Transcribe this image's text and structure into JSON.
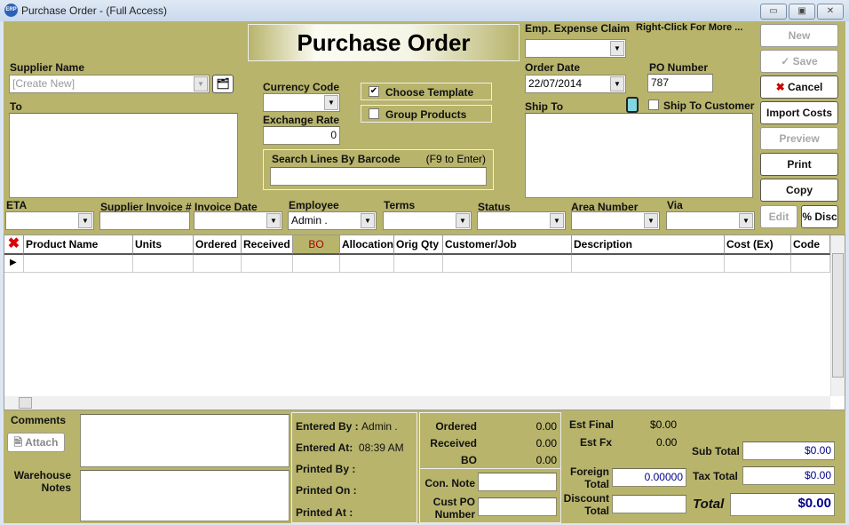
{
  "window": {
    "title": "Purchase Order - (Full Access)",
    "app_icon": "ERP"
  },
  "header": {
    "title": "Purchase Order",
    "emp_expense_claim": "Emp. Expense Claim",
    "right_click_hint": "Right-Click For More ..."
  },
  "supplier": {
    "label": "Supplier Name",
    "placeholder": "[Create New]"
  },
  "to": {
    "label": "To"
  },
  "currency": {
    "label": "Currency Code",
    "value": ""
  },
  "exchange": {
    "label": "Exchange Rate",
    "value": "0"
  },
  "options": {
    "choose_template": "Choose Template",
    "choose_template_checked": true,
    "group_products": "Group Products",
    "group_products_checked": false
  },
  "barcode": {
    "label": "Search Lines By Barcode",
    "hint": "(F9 to Enter)"
  },
  "order_date": {
    "label": "Order Date",
    "value": "22/07/2014"
  },
  "po_number": {
    "label": "PO Number",
    "value": "787"
  },
  "ship_to": {
    "label": "Ship To",
    "ship_to_customer": "Ship To Customer"
  },
  "buttons": {
    "new": "New",
    "save": "Save",
    "cancel": "Cancel",
    "import_costs": "Import Costs",
    "preview": "Preview",
    "print": "Print",
    "copy": "Copy",
    "edit": "Edit",
    "disc": "% Disc"
  },
  "fields_row": {
    "eta": "ETA",
    "supplier_invoice": "Supplier Invoice #",
    "invoice_date": "Invoice Date",
    "employee": "Employee",
    "employee_value": "Admin .",
    "terms": "Terms",
    "status": "Status",
    "area_number": "Area Number",
    "via": "Via"
  },
  "grid": {
    "columns": [
      "Product Name",
      "Units",
      "Ordered",
      "Received",
      "BO",
      "Allocation",
      "Orig Qty",
      "Customer/Job",
      "Description",
      "Cost (Ex)",
      "Code"
    ]
  },
  "bottom": {
    "comments": "Comments",
    "attach": "Attach",
    "warehouse_notes": "Warehouse Notes",
    "entered_by_label": "Entered By :",
    "entered_by": "Admin .",
    "entered_at_label": "Entered At:",
    "entered_at": "08:39 AM",
    "printed_by": "Printed By :",
    "printed_on": "Printed On :",
    "printed_at": "Printed At :",
    "ordered_label": "Ordered",
    "ordered": "0.00",
    "received_label": "Received",
    "received": "0.00",
    "bo_label": "BO",
    "bo": "0.00",
    "con_note": "Con. Note",
    "cust_po": "Cust PO Number",
    "est_final_label": "Est Final",
    "est_final": "$0.00",
    "est_fx_label": "Est Fx",
    "est_fx": "0.00",
    "foreign_total_label": "Foreign Total",
    "foreign_total": "0.00000",
    "discount_total_label": "Discount Total",
    "sub_total_label": "Sub Total",
    "sub_total": "$0.00",
    "tax_total_label": "Tax Total",
    "tax_total": "$0.00",
    "total_label": "Total",
    "total": "$0.00"
  }
}
